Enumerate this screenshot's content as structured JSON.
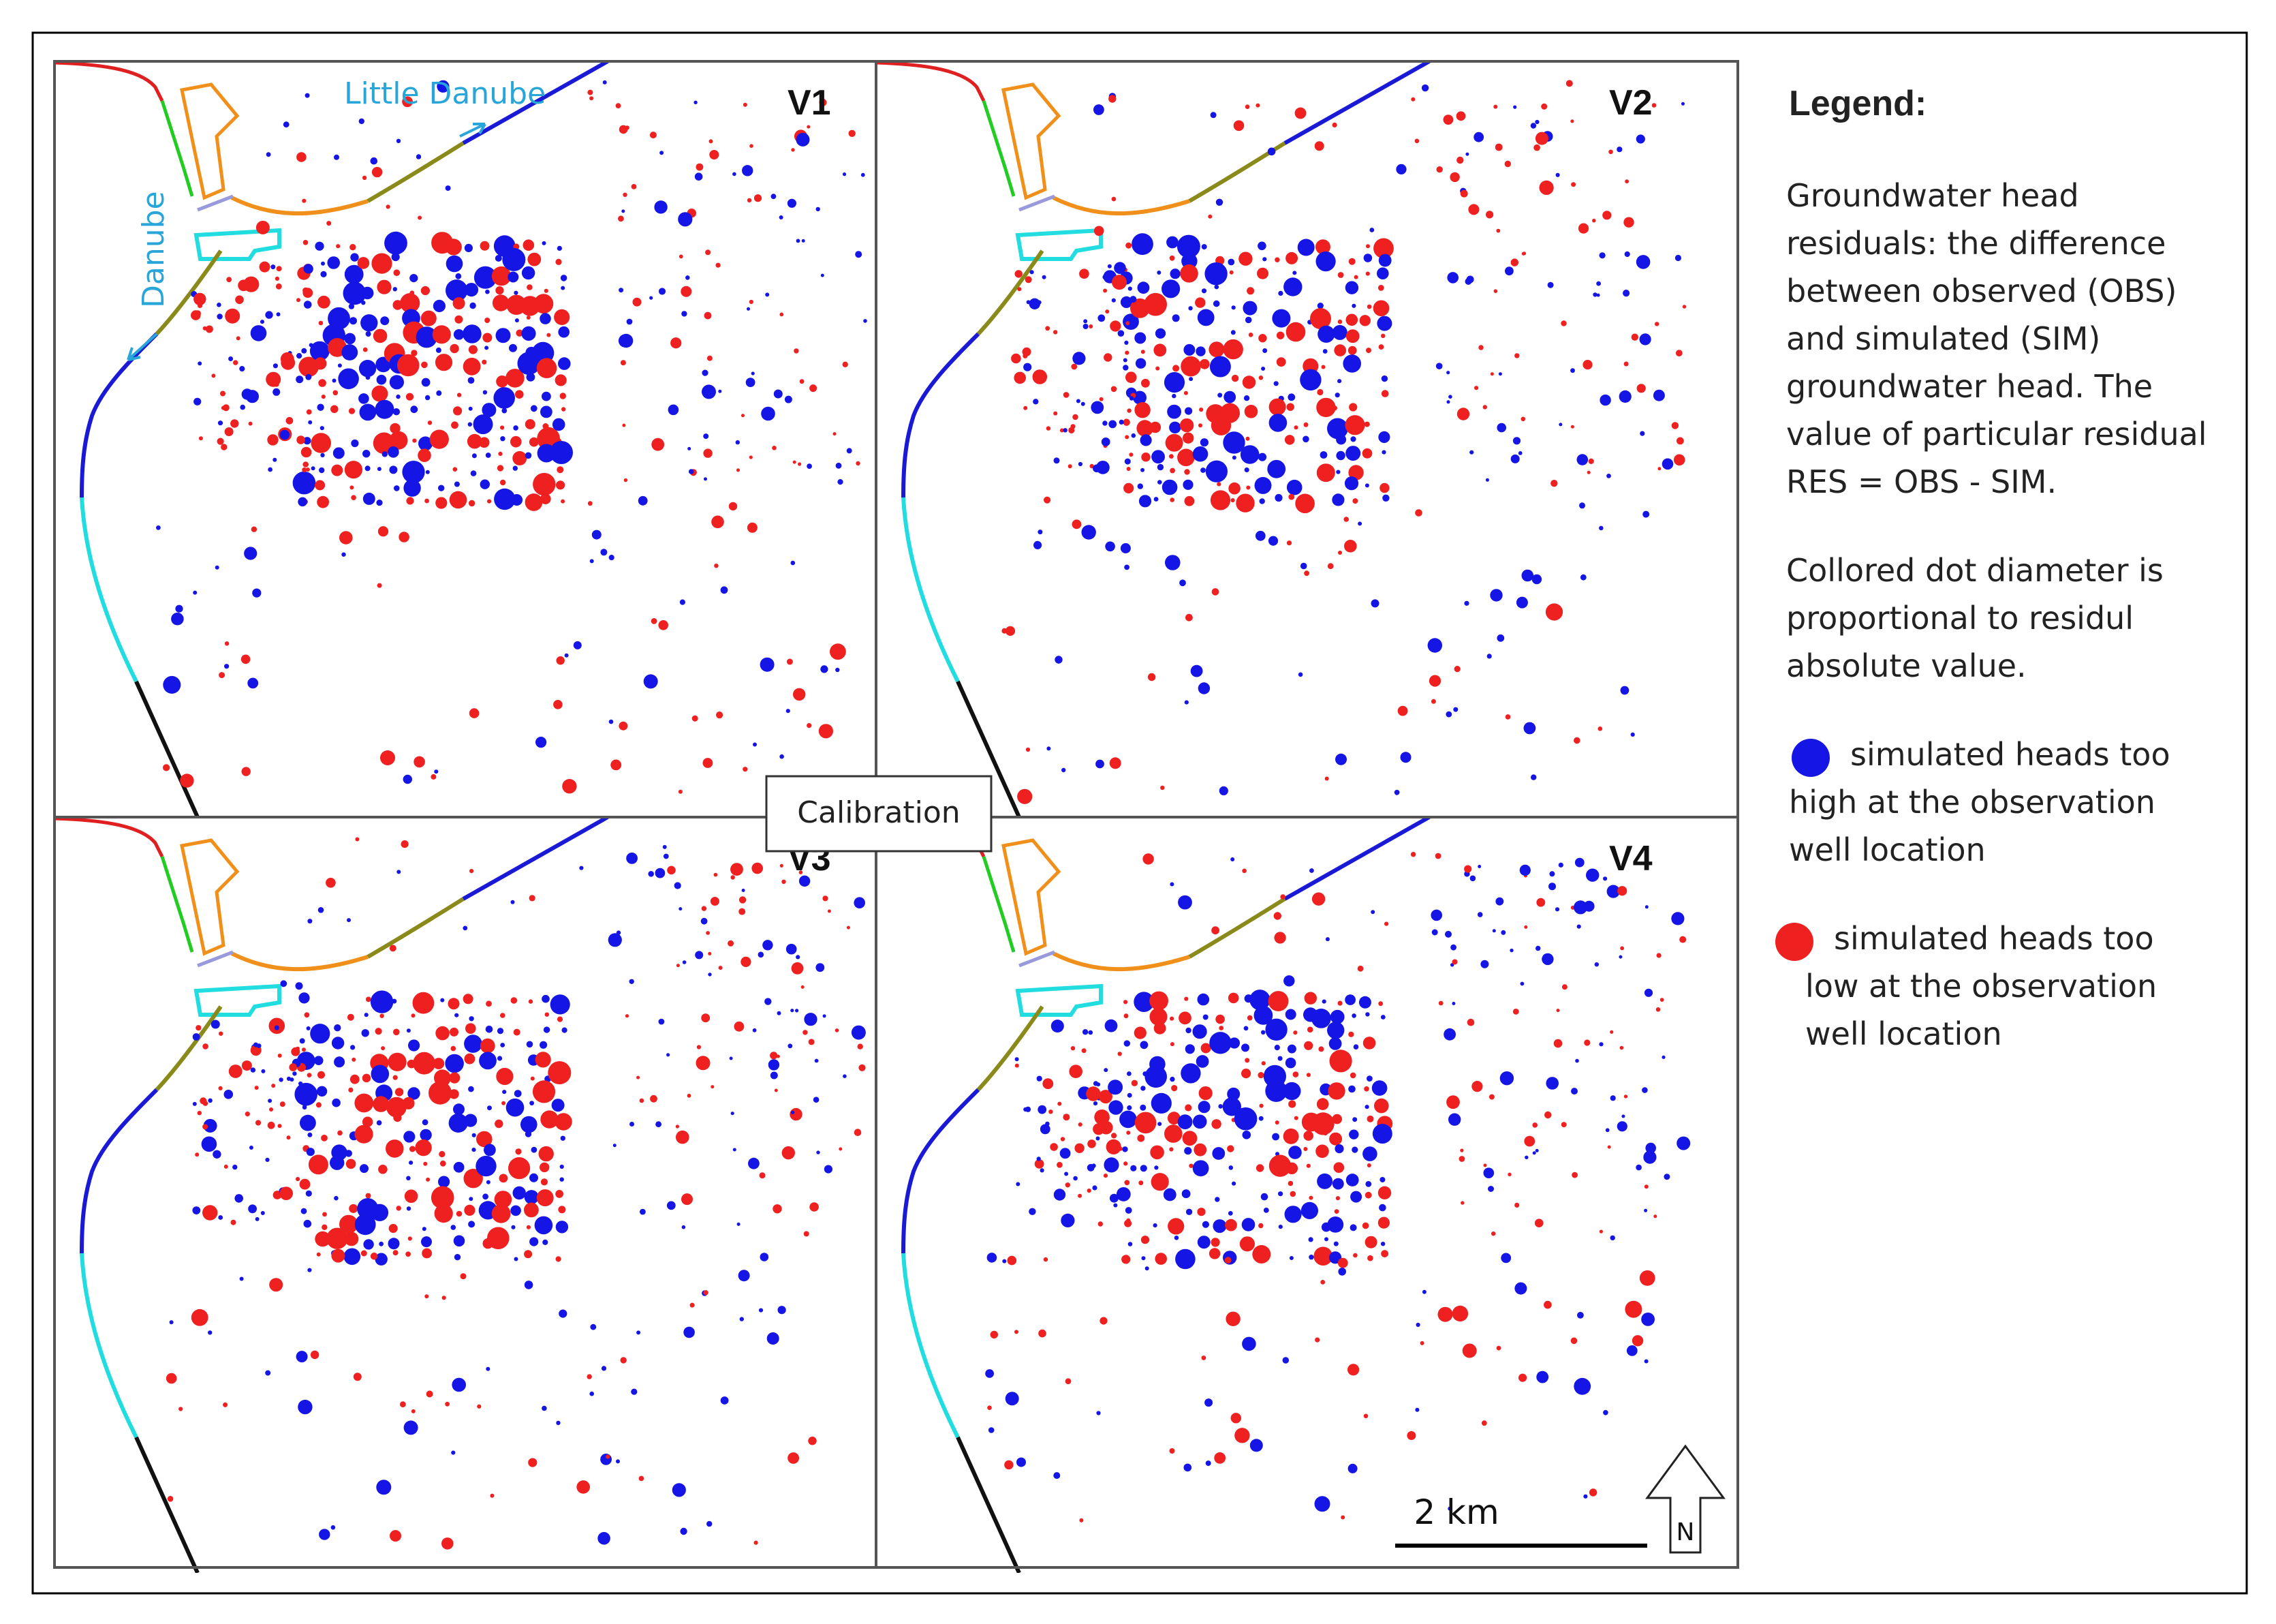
{
  "panels": [
    {
      "id": "V1",
      "label": "V1",
      "seed": 11
    },
    {
      "id": "V2",
      "label": "V2",
      "seed": 23
    },
    {
      "id": "V3",
      "label": "V3",
      "seed": 37
    },
    {
      "id": "V4",
      "label": "V4",
      "seed": 53
    }
  ],
  "river_labels": {
    "danube": "Danube",
    "little_danube": "Little Danube"
  },
  "center_label": "Calibration",
  "scale_bar": {
    "label": "2 km",
    "km": 2
  },
  "north_arrow": {
    "label": "N"
  },
  "legend": {
    "title": "Legend:",
    "description_lines": [
      "Groundwater head",
      "residuals: the difference",
      "between observed (OBS)",
      "and simulated (SIM)",
      "groundwater head. The",
      "value of particular residual",
      "RES = OBS - SIM."
    ],
    "diameter_lines": [
      "Collored dot diameter is",
      "proportional to residul",
      "absolute value."
    ],
    "items": [
      {
        "lines": [
          "simulated heads too",
          "high at the observation",
          "well location"
        ],
        "color": "#1515e6",
        "name": "too-high"
      },
      {
        "lines": [
          "simulated heads too",
          "low at the observation",
          "well location"
        ],
        "color": "#ee2020",
        "name": "too-low"
      }
    ]
  },
  "colors": {
    "positive_residual": "#1515e6",
    "negative_residual": "#ee2020",
    "danube_river": "#1a1ad6",
    "little_danube_label": "#29a6d9",
    "river_red": "#e02020",
    "river_green": "#22cc22",
    "river_orange": "#f0901a",
    "river_olive": "#8a8a1a",
    "river_lavender": "#9999dd",
    "river_cyan": "#22dde0",
    "river_black": "#111111"
  }
}
